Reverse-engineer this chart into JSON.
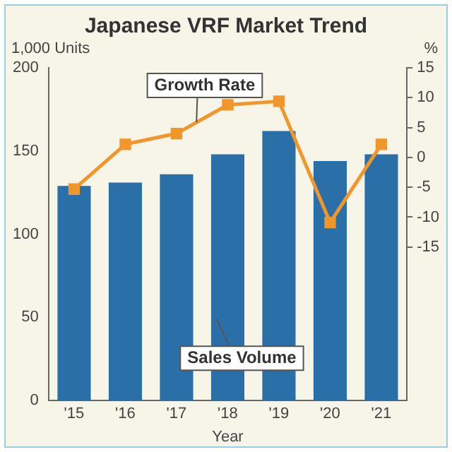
{
  "chart_data": {
    "type": "bar",
    "title": "Japanese VRF Market Trend",
    "xlabel": "Year",
    "ylabel": "1,000 Units",
    "y2label": "%",
    "categories": [
      "'15",
      "'16",
      "'17",
      "'18",
      "'19",
      "'20",
      "'21"
    ],
    "series": [
      {
        "name": "Sales Volume",
        "color": "#2a6fa8",
        "values": [
          129,
          131,
          136,
          148,
          162,
          144,
          148
        ]
      },
      {
        "name": "Growth Rate",
        "type": "line",
        "axis": "y2",
        "color": "#f0962a",
        "marker": "square",
        "values": [
          -5.3,
          2.2,
          4,
          8.8,
          9.4,
          -10.9,
          2.2
        ]
      }
    ],
    "ylim": [
      0,
      200
    ],
    "yticks": [
      0,
      50,
      100,
      150,
      200
    ],
    "y2lim": [
      -40.7,
      15
    ],
    "y2ticks": [
      -15,
      -10,
      -5,
      0,
      5,
      10,
      15
    ],
    "grid": false,
    "legend": false
  }
}
